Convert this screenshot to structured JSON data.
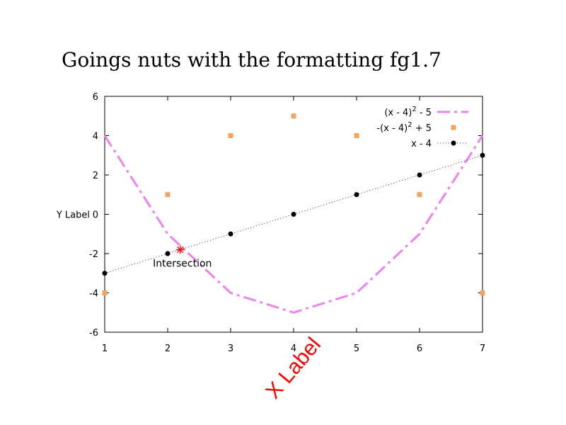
{
  "chart_data": {
    "type": "line",
    "title": "Goings nuts with the formatting fg1.7",
    "xlabel": "X Label",
    "ylabel": "Y Label",
    "xlim": [
      1,
      7
    ],
    "ylim": [
      -6,
      6
    ],
    "xticks": [
      1,
      2,
      3,
      4,
      5,
      6,
      7
    ],
    "yticks": [
      -6,
      -4,
      -2,
      0,
      2,
      4,
      6
    ],
    "grid": false,
    "legend_position": "top-right",
    "series": [
      {
        "name": "(x - 4)2 - 5",
        "name_parts": [
          "(x - 4)",
          "2",
          " - 5"
        ],
        "style": "dash-dot line",
        "color": "#ee82ee",
        "x": [
          1,
          2,
          3,
          4,
          5,
          6,
          7
        ],
        "y": [
          4,
          -1,
          -4,
          -5,
          -4,
          -1,
          4
        ]
      },
      {
        "name": "-(x - 4)2 + 5",
        "name_parts": [
          "-(x - 4)",
          "2",
          " + 5"
        ],
        "style": "square markers",
        "color": "#f4a460",
        "x": [
          1,
          2,
          3,
          4,
          5,
          6,
          7
        ],
        "y": [
          -4,
          1,
          4,
          5,
          4,
          1,
          -4
        ]
      },
      {
        "name": "x - 4",
        "name_parts": [
          "x - 4",
          "",
          ""
        ],
        "style": "dotted line with circle markers",
        "color": "#000000",
        "x": [
          1,
          2,
          3,
          4,
          5,
          6,
          7
        ],
        "y": [
          -3,
          -2,
          -1,
          0,
          1,
          2,
          3
        ]
      }
    ],
    "annotations": [
      {
        "text": "Intersection",
        "x": 2.2,
        "y": -1.8,
        "marker": "star",
        "color": "#ff0000"
      }
    ]
  }
}
